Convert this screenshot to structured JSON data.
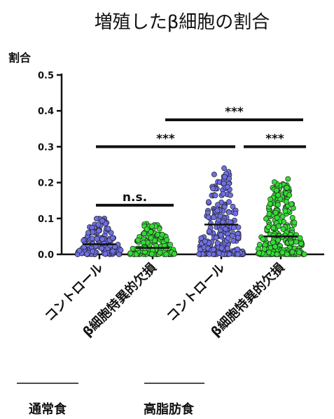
{
  "chart_data": {
    "type": "scatter",
    "title": "増殖したβ細胞の割合",
    "ylabel": "割合",
    "ylim": [
      0,
      0.5
    ],
    "yticks": [
      "0.0",
      "0.1",
      "0.2",
      "0.3",
      "0.4",
      "0.5"
    ],
    "categories": [
      "コントロール",
      "β細胞特異的欠損",
      "コントロール",
      "β細胞特異的欠損"
    ],
    "groups": [
      {
        "label": "通常食",
        "categories": [
          0,
          1
        ]
      },
      {
        "label": "高脂肪食",
        "categories": [
          2,
          3
        ]
      }
    ],
    "series": [
      {
        "category_index": 0,
        "color": "#6f6fe6",
        "max": 0.1,
        "mean": 0.028,
        "n": 150
      },
      {
        "category_index": 1,
        "color": "#33dd33",
        "max": 0.085,
        "mean": 0.018,
        "n": 150
      },
      {
        "category_index": 2,
        "color": "#6f6fe6",
        "max": 0.24,
        "mean": 0.083,
        "n": 220
      },
      {
        "category_index": 3,
        "color": "#33dd33",
        "max": 0.21,
        "mean": 0.05,
        "n": 260
      }
    ],
    "significance": [
      {
        "from": 0,
        "to": 1,
        "y": 0.137,
        "label": "n.s."
      },
      {
        "from": 0,
        "to": 2,
        "y": 0.3,
        "label": "***"
      },
      {
        "from": 2,
        "to": 3,
        "y": 0.3,
        "label": "***"
      },
      {
        "from": 1,
        "to": 3,
        "y": 0.375,
        "label": "***"
      }
    ]
  }
}
